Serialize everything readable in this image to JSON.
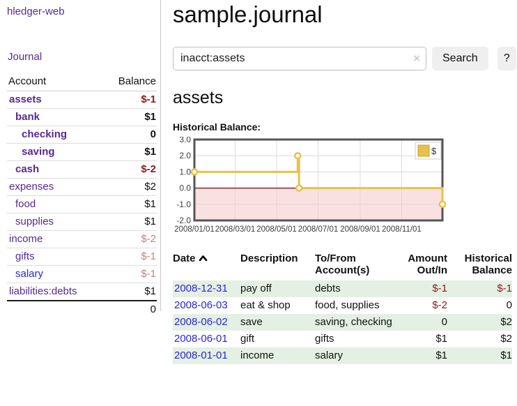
{
  "app": {
    "title": "hledger-web"
  },
  "sidebar": {
    "journal_link": "Journal",
    "columns": {
      "account": "Account",
      "balance": "Balance"
    },
    "accounts": [
      {
        "name": "assets",
        "depth": 1,
        "bold": true,
        "balance": "$-1",
        "balance_style": "neg"
      },
      {
        "name": "bank",
        "depth": 2,
        "bold": true,
        "balance": "$1",
        "balance_style": "pos"
      },
      {
        "name": "checking",
        "depth": 3,
        "bold": true,
        "balance": "0",
        "balance_style": "pos"
      },
      {
        "name": "saving",
        "depth": 3,
        "bold": true,
        "balance": "$1",
        "balance_style": "pos"
      },
      {
        "name": "cash",
        "depth": 2,
        "bold": true,
        "balance": "$-2",
        "balance_style": "neg"
      },
      {
        "name": "expenses",
        "depth": 1,
        "bold": false,
        "balance": "$2",
        "balance_style": "pos"
      },
      {
        "name": "food",
        "depth": 2,
        "bold": false,
        "balance": "$1",
        "balance_style": "pos"
      },
      {
        "name": "supplies",
        "depth": 2,
        "bold": false,
        "balance": "$1",
        "balance_style": "pos"
      },
      {
        "name": "income",
        "depth": 1,
        "bold": false,
        "balance": "$-2",
        "balance_style": "negfaded"
      },
      {
        "name": "gifts",
        "depth": 2,
        "bold": false,
        "balance": "$-1",
        "balance_style": "negfaded"
      },
      {
        "name": "salary",
        "depth": 2,
        "bold": false,
        "balance": "$-1",
        "balance_style": "negfaded",
        "link_style": "blue"
      },
      {
        "name": "liabilities:debts",
        "depth": 1,
        "bold": false,
        "balance": "$1",
        "balance_style": "pos"
      }
    ],
    "total": "0"
  },
  "main": {
    "title": "sample.journal",
    "search": {
      "value": "inacct:assets",
      "clear_icon": "×",
      "button_label": "Search",
      "help_label": "?"
    },
    "account_heading": "assets",
    "chart_section_label": "Historical Balance:"
  },
  "chart_data": {
    "type": "line",
    "title": "Historical Balance",
    "step": true,
    "legend": [
      {
        "label": "$",
        "color": "#e8c14a"
      }
    ],
    "legend_position": "top-right",
    "grid": true,
    "ylim": [
      -2,
      3
    ],
    "y_ticks": [
      {
        "value": 3,
        "label": "3.0"
      },
      {
        "value": 2,
        "label": "2.0"
      },
      {
        "value": 1,
        "label": "1.0"
      },
      {
        "value": 0,
        "label": "0.0"
      },
      {
        "value": -1,
        "label": "-1.0"
      },
      {
        "value": -2,
        "label": "-2.0"
      }
    ],
    "x_range_days": [
      0,
      365
    ],
    "x_ticks": [
      {
        "label": "2008/01/01",
        "day": 0
      },
      {
        "label": "2008/03/01",
        "day": 60
      },
      {
        "label": "2008/05/01",
        "day": 121
      },
      {
        "label": "2008/07/01",
        "day": 182
      },
      {
        "label": "2008/09/01",
        "day": 244
      },
      {
        "label": "2008/11/01",
        "day": 305
      }
    ],
    "points": [
      {
        "date": "2008-01-01",
        "day": 0,
        "value": 1
      },
      {
        "date": "2008-06-01",
        "day": 152,
        "value": 2
      },
      {
        "date": "2008-06-03",
        "day": 154,
        "value": 0
      },
      {
        "date": "2008-12-31",
        "day": 365,
        "value": -1
      }
    ],
    "colors": {
      "series": "#e8c14a",
      "marker_fill": "#ffffff",
      "negative_region": "#f6c9c9",
      "zero_line": "#8b0000",
      "gridline": "#dcdcdc",
      "border": "#555555",
      "tick_text": "#3c3c3c"
    }
  },
  "register": {
    "headers": {
      "date": "Date",
      "sort_indicator": "ascending",
      "description": "Description",
      "tofrom": "To/From Account(s)",
      "amount": "Amount Out/In",
      "balance": "Historical Balance"
    },
    "rows": [
      {
        "date": "2008-12-31",
        "description": "pay off",
        "tofrom": "debts",
        "amount": "$-1",
        "amount_neg": true,
        "balance": "$-1",
        "balance_neg": true
      },
      {
        "date": "2008-06-03",
        "description": "eat & shop",
        "tofrom": "food, supplies",
        "amount": "$-2",
        "amount_neg": true,
        "balance": "0",
        "balance_neg": false
      },
      {
        "date": "2008-06-02",
        "description": "save",
        "tofrom": "saving, checking",
        "amount": "0",
        "amount_neg": false,
        "balance": "$2",
        "balance_neg": false
      },
      {
        "date": "2008-06-01",
        "description": "gift",
        "tofrom": "gifts",
        "amount": "$1",
        "amount_neg": false,
        "balance": "$2",
        "balance_neg": false
      },
      {
        "date": "2008-01-01",
        "description": "income",
        "tofrom": "salary",
        "amount": "$1",
        "amount_neg": false,
        "balance": "$1",
        "balance_neg": false
      }
    ]
  },
  "colors": {
    "link_purple": "#552a93",
    "link_blue": "#2626d9",
    "negative": "#8b1b1b",
    "negative_faded": "#c08383",
    "row_stripe_green": "#e4f0e4",
    "button_bg": "#efefef"
  }
}
